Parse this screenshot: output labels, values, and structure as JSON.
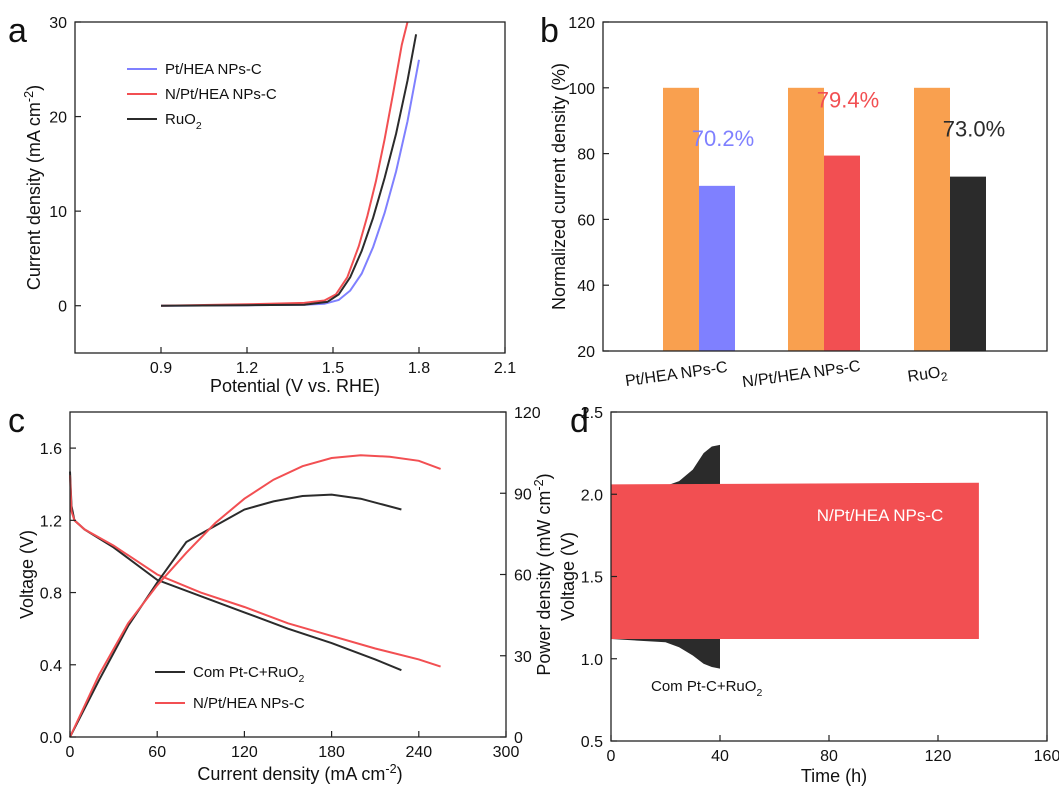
{
  "colors": {
    "blue": "#7f80ff",
    "red": "#f24f52",
    "black": "#2b2b2b",
    "orange": "#f9a04f"
  },
  "chart_data": [
    {
      "panel": "a",
      "type": "line",
      "xlabel": "Potential (V vs. RHE)",
      "ylabel": "Current density (mA cm-2)",
      "ylabel_main": "Current density (mA cm",
      "ylabel_sup": "-2",
      "ylabel_end": ")",
      "xlim": [
        0.6,
        2.1
      ],
      "ylim": [
        -5,
        30
      ],
      "xticks": [
        "0.9",
        "1.2",
        "1.5",
        "1.8",
        "2.1"
      ],
      "yticks": [
        "0",
        "10",
        "20",
        "30"
      ],
      "legend": [
        "Pt/HEA NPs-C",
        "N/Pt/HEA NPs-C",
        "RuO2"
      ],
      "series": [
        {
          "name": "Pt/HEA NPs-C",
          "color": "blue",
          "x": [
            0.9,
            1.2,
            1.4,
            1.47,
            1.52,
            1.56,
            1.6,
            1.64,
            1.68,
            1.72,
            1.76,
            1.8
          ],
          "y": [
            0,
            0.05,
            0.1,
            0.2,
            0.6,
            1.6,
            3.4,
            6.2,
            9.8,
            14.2,
            19.5,
            26
          ]
        },
        {
          "name": "N/Pt/HEA NPs-C",
          "color": "red",
          "x": [
            0.9,
            1.2,
            1.4,
            1.47,
            1.51,
            1.55,
            1.59,
            1.62,
            1.65,
            1.68,
            1.71,
            1.74,
            1.76
          ],
          "y": [
            0,
            0.15,
            0.3,
            0.55,
            1.2,
            3.0,
            6.3,
            9.5,
            13.2,
            17.6,
            22.5,
            27.6,
            30
          ]
        },
        {
          "name": "RuO2",
          "color": "black",
          "x": [
            0.9,
            1.2,
            1.4,
            1.48,
            1.52,
            1.56,
            1.6,
            1.64,
            1.68,
            1.72,
            1.76,
            1.79
          ],
          "y": [
            0,
            0.05,
            0.1,
            0.4,
            1.2,
            3.0,
            5.8,
            9.3,
            13.5,
            18.2,
            23.8,
            28.7
          ]
        }
      ]
    },
    {
      "panel": "b",
      "type": "bar",
      "ylabel": "Normalized current density (%)",
      "ylim": [
        20,
        120
      ],
      "yticks": [
        "20",
        "40",
        "60",
        "80",
        "100",
        "120"
      ],
      "categories": [
        "Pt/HEA NPs-C",
        "N/Pt/HEA NPs-C",
        "RuO2"
      ],
      "initial": [
        100,
        100,
        100
      ],
      "retained": [
        70.2,
        79.4,
        73.0
      ],
      "retained_colors": [
        "blue",
        "red",
        "black"
      ],
      "labels": [
        "70.2%",
        "79.4%",
        "73.0%"
      ]
    },
    {
      "panel": "c",
      "type": "line",
      "xlabel": "Current density (mA cm-2)",
      "xlabel_main": "Current density (mA cm",
      "xlabel_sup": "-2",
      "xlabel_end": ")",
      "ylabel": "Voltage (V)",
      "y2label": "Power density (mW cm-2)",
      "y2label_main": "Power density (mW cm",
      "y2label_sup": "-2",
      "y2label_end": ")",
      "xlim": [
        0,
        300
      ],
      "ylim": [
        0.0,
        1.8
      ],
      "y2lim": [
        0,
        120
      ],
      "xticks": [
        "0",
        "60",
        "120",
        "180",
        "240",
        "300"
      ],
      "yticks": [
        "0.0",
        "0.4",
        "0.8",
        "1.2",
        "1.6"
      ],
      "y2ticks": [
        "0",
        "30",
        "60",
        "90",
        "120"
      ],
      "legend": [
        "Com Pt-C+RuO2",
        "N/Pt/HEA NPs-C"
      ],
      "series": [
        {
          "name": "Com Pt-C+RuO2 voltage",
          "axis": "left",
          "color": "black",
          "x": [
            0,
            1,
            3,
            10,
            30,
            60,
            90,
            120,
            150,
            180,
            210,
            228
          ],
          "y": [
            1.47,
            1.28,
            1.2,
            1.15,
            1.05,
            0.87,
            0.78,
            0.69,
            0.6,
            0.52,
            0.43,
            0.37
          ]
        },
        {
          "name": "N/Pt/HEA NPs-C voltage",
          "axis": "left",
          "color": "red",
          "x": [
            0,
            1,
            3,
            10,
            30,
            60,
            90,
            120,
            150,
            180,
            210,
            240,
            255
          ],
          "y": [
            1.45,
            1.25,
            1.2,
            1.15,
            1.06,
            0.9,
            0.8,
            0.72,
            0.63,
            0.56,
            0.49,
            0.43,
            0.39
          ]
        },
        {
          "name": "Com Pt-C+RuO2 power",
          "axis": "right",
          "color": "black",
          "x": [
            0,
            20,
            40,
            60,
            80,
            100,
            120,
            140,
            160,
            180,
            200,
            228
          ],
          "y": [
            0,
            21,
            41,
            57,
            72,
            78,
            84,
            87,
            89,
            89.5,
            88,
            84
          ]
        },
        {
          "name": "N/Pt/HEA NPs-C power",
          "axis": "right",
          "color": "red",
          "x": [
            0,
            20,
            40,
            60,
            80,
            100,
            120,
            140,
            160,
            180,
            200,
            220,
            240,
            255
          ],
          "y": [
            0,
            23,
            42,
            56,
            68,
            79,
            88,
            95,
            100,
            103,
            104,
            103.5,
            102,
            99
          ]
        }
      ]
    },
    {
      "panel": "d",
      "type": "area",
      "xlabel": "Time (h)",
      "ylabel": "Voltage (V)",
      "xlim": [
        0,
        160
      ],
      "ylim": [
        0.5,
        2.5
      ],
      "xticks": [
        "0",
        "40",
        "80",
        "120",
        "160"
      ],
      "yticks": [
        "0.5",
        "1.0",
        "1.5",
        "2.0",
        "2.5"
      ],
      "series": [
        {
          "name": "Com Pt-C+RuO2",
          "color": "black",
          "x": [
            0,
            20,
            25,
            30,
            34,
            37,
            40
          ],
          "upper": [
            2.04,
            2.05,
            2.08,
            2.15,
            2.25,
            2.29,
            2.3
          ],
          "lower": [
            1.12,
            1.1,
            1.07,
            1.02,
            0.97,
            0.95,
            0.94
          ]
        },
        {
          "name": "N/Pt/HEA NPs-C",
          "color": "red",
          "x": [
            0,
            135
          ],
          "upper": [
            2.06,
            2.07
          ],
          "lower": [
            1.12,
            1.12
          ]
        }
      ],
      "annotations": [
        "N/Pt/HEA NPs-C",
        "Com Pt-C+RuO2"
      ]
    }
  ]
}
